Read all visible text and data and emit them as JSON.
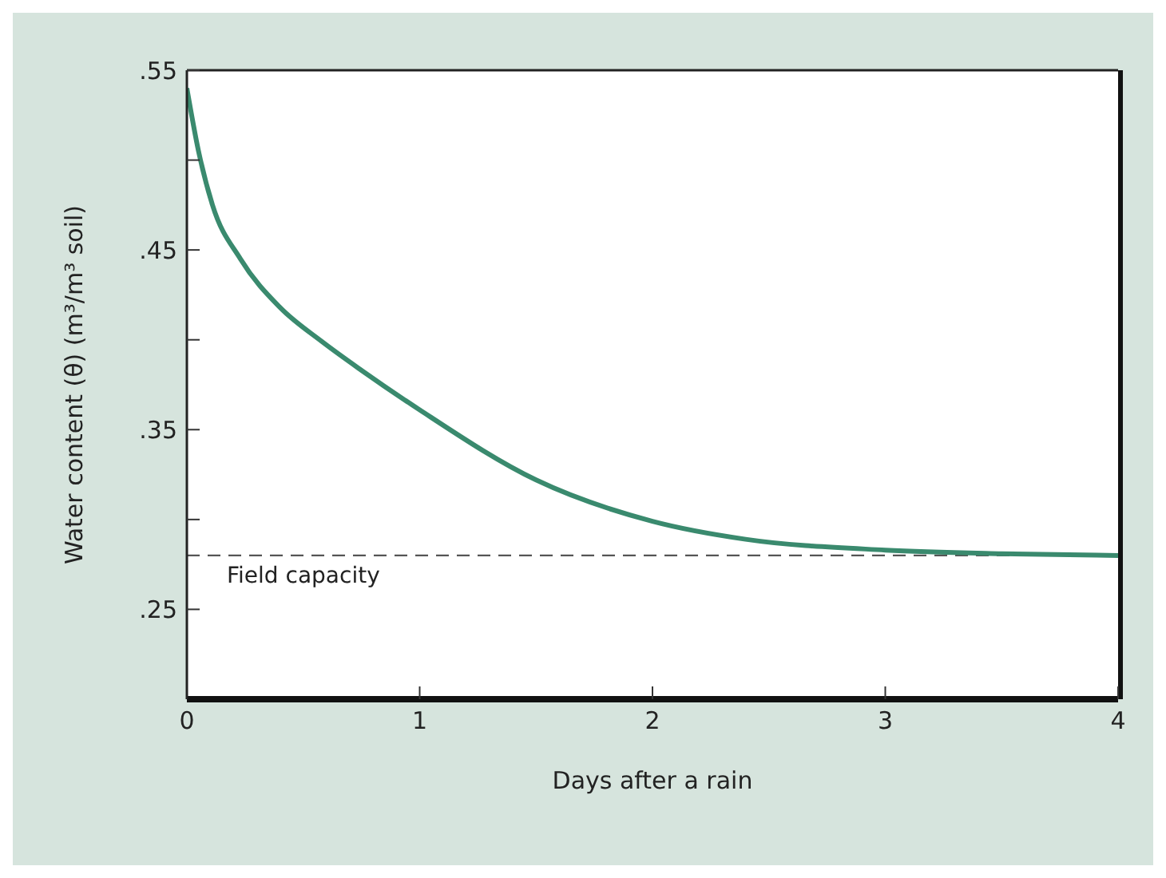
{
  "chart_data": {
    "type": "line",
    "xlabel": "Days after a rain",
    "ylabel": "Water content (θ) (m³/m³ soil)",
    "series": [
      {
        "color": "#3a8a6e",
        "x": [
          0,
          0.05,
          0.11,
          0.23,
          0.4,
          0.58,
          0.75,
          1,
          1.5,
          2,
          2.4,
          3,
          3.5,
          4
        ],
        "values": [
          0.54,
          0.505,
          0.475,
          0.445,
          0.418,
          0.399,
          0.383,
          0.361,
          0.322,
          0.299,
          0.289,
          0.283,
          0.281,
          0.28
        ]
      }
    ],
    "xlim": [
      0,
      4
    ],
    "xticks": [
      0,
      1,
      2,
      3,
      4
    ],
    "ylim": [
      0.2,
      0.55
    ],
    "yticks": [
      {
        "value": 0.25,
        "label": ".25"
      },
      {
        "value": 0.3,
        "label": null
      },
      {
        "value": 0.35,
        "label": ".35"
      },
      {
        "value": 0.4,
        "label": null
      },
      {
        "value": 0.45,
        "label": ".45"
      },
      {
        "value": 0.5,
        "label": null
      },
      {
        "value": 0.55,
        "label": ".55"
      }
    ],
    "ref_lines": [
      {
        "axis": "y",
        "value": 0.28,
        "label": "Field capacity",
        "color": "#555555",
        "line_style": "dashed"
      }
    ],
    "marker": "none",
    "line_style": "solid"
  }
}
